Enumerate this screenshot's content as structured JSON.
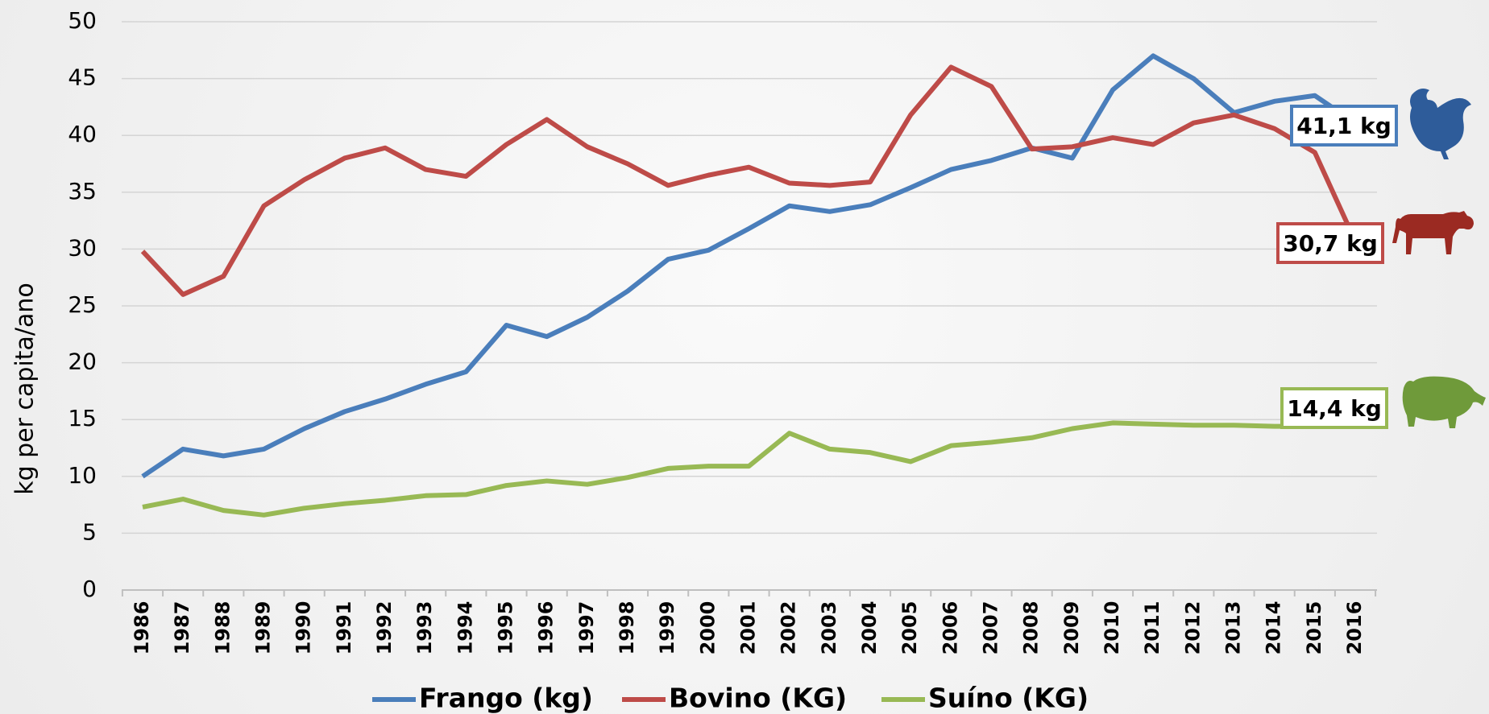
{
  "chart_data": {
    "type": "line",
    "y_label": "kg per capita/ano",
    "categories": [
      "1986",
      "1987",
      "1988",
      "1989",
      "1990",
      "1991",
      "1992",
      "1993",
      "1994",
      "1995",
      "1996",
      "1997",
      "1998",
      "1999",
      "2000",
      "2001",
      "2002",
      "2003",
      "2004",
      "2005",
      "2006",
      "2007",
      "2008",
      "2009",
      "2010",
      "2011",
      "2012",
      "2013",
      "2014",
      "2015",
      "2016"
    ],
    "series": [
      {
        "name": "Frango (kg)",
        "color": "#4a7ebb",
        "values": [
          10.0,
          12.4,
          11.8,
          12.4,
          14.2,
          15.7,
          16.8,
          18.1,
          19.2,
          23.3,
          22.3,
          24.0,
          26.3,
          29.1,
          29.9,
          31.8,
          33.8,
          33.3,
          33.9,
          35.4,
          37.0,
          37.8,
          38.9,
          38.0,
          44.0,
          47.0,
          45.0,
          42.0,
          43.0,
          43.5,
          41.1
        ]
      },
      {
        "name": "Bovino (KG)",
        "color": "#be4b48",
        "values": [
          29.8,
          26.0,
          27.6,
          33.8,
          36.1,
          38.0,
          38.9,
          37.0,
          36.4,
          39.2,
          41.4,
          39.0,
          37.5,
          35.6,
          36.5,
          37.2,
          35.8,
          35.6,
          35.9,
          41.8,
          46.0,
          44.3,
          38.8,
          39.0,
          39.8,
          39.2,
          41.1,
          41.8,
          40.6,
          38.5,
          30.7
        ]
      },
      {
        "name": "Suíno (KG)",
        "color": "#98b954",
        "values": [
          7.3,
          8.0,
          7.0,
          6.6,
          7.2,
          7.6,
          7.9,
          8.3,
          8.4,
          9.2,
          9.6,
          9.3,
          9.9,
          10.7,
          10.9,
          10.9,
          13.8,
          12.4,
          12.1,
          11.3,
          12.7,
          13.0,
          13.4,
          14.2,
          14.7,
          14.6,
          14.5,
          14.5,
          14.4,
          14.4,
          14.4
        ]
      }
    ],
    "annotations": [
      "41,1 kg",
      "30,7 kg",
      "14,4 kg"
    ],
    "ylim": [
      0,
      50
    ],
    "yticks": [
      0,
      5,
      10,
      15,
      20,
      25,
      30,
      35,
      40,
      45,
      50
    ],
    "grid": true,
    "legend": "bottom"
  }
}
